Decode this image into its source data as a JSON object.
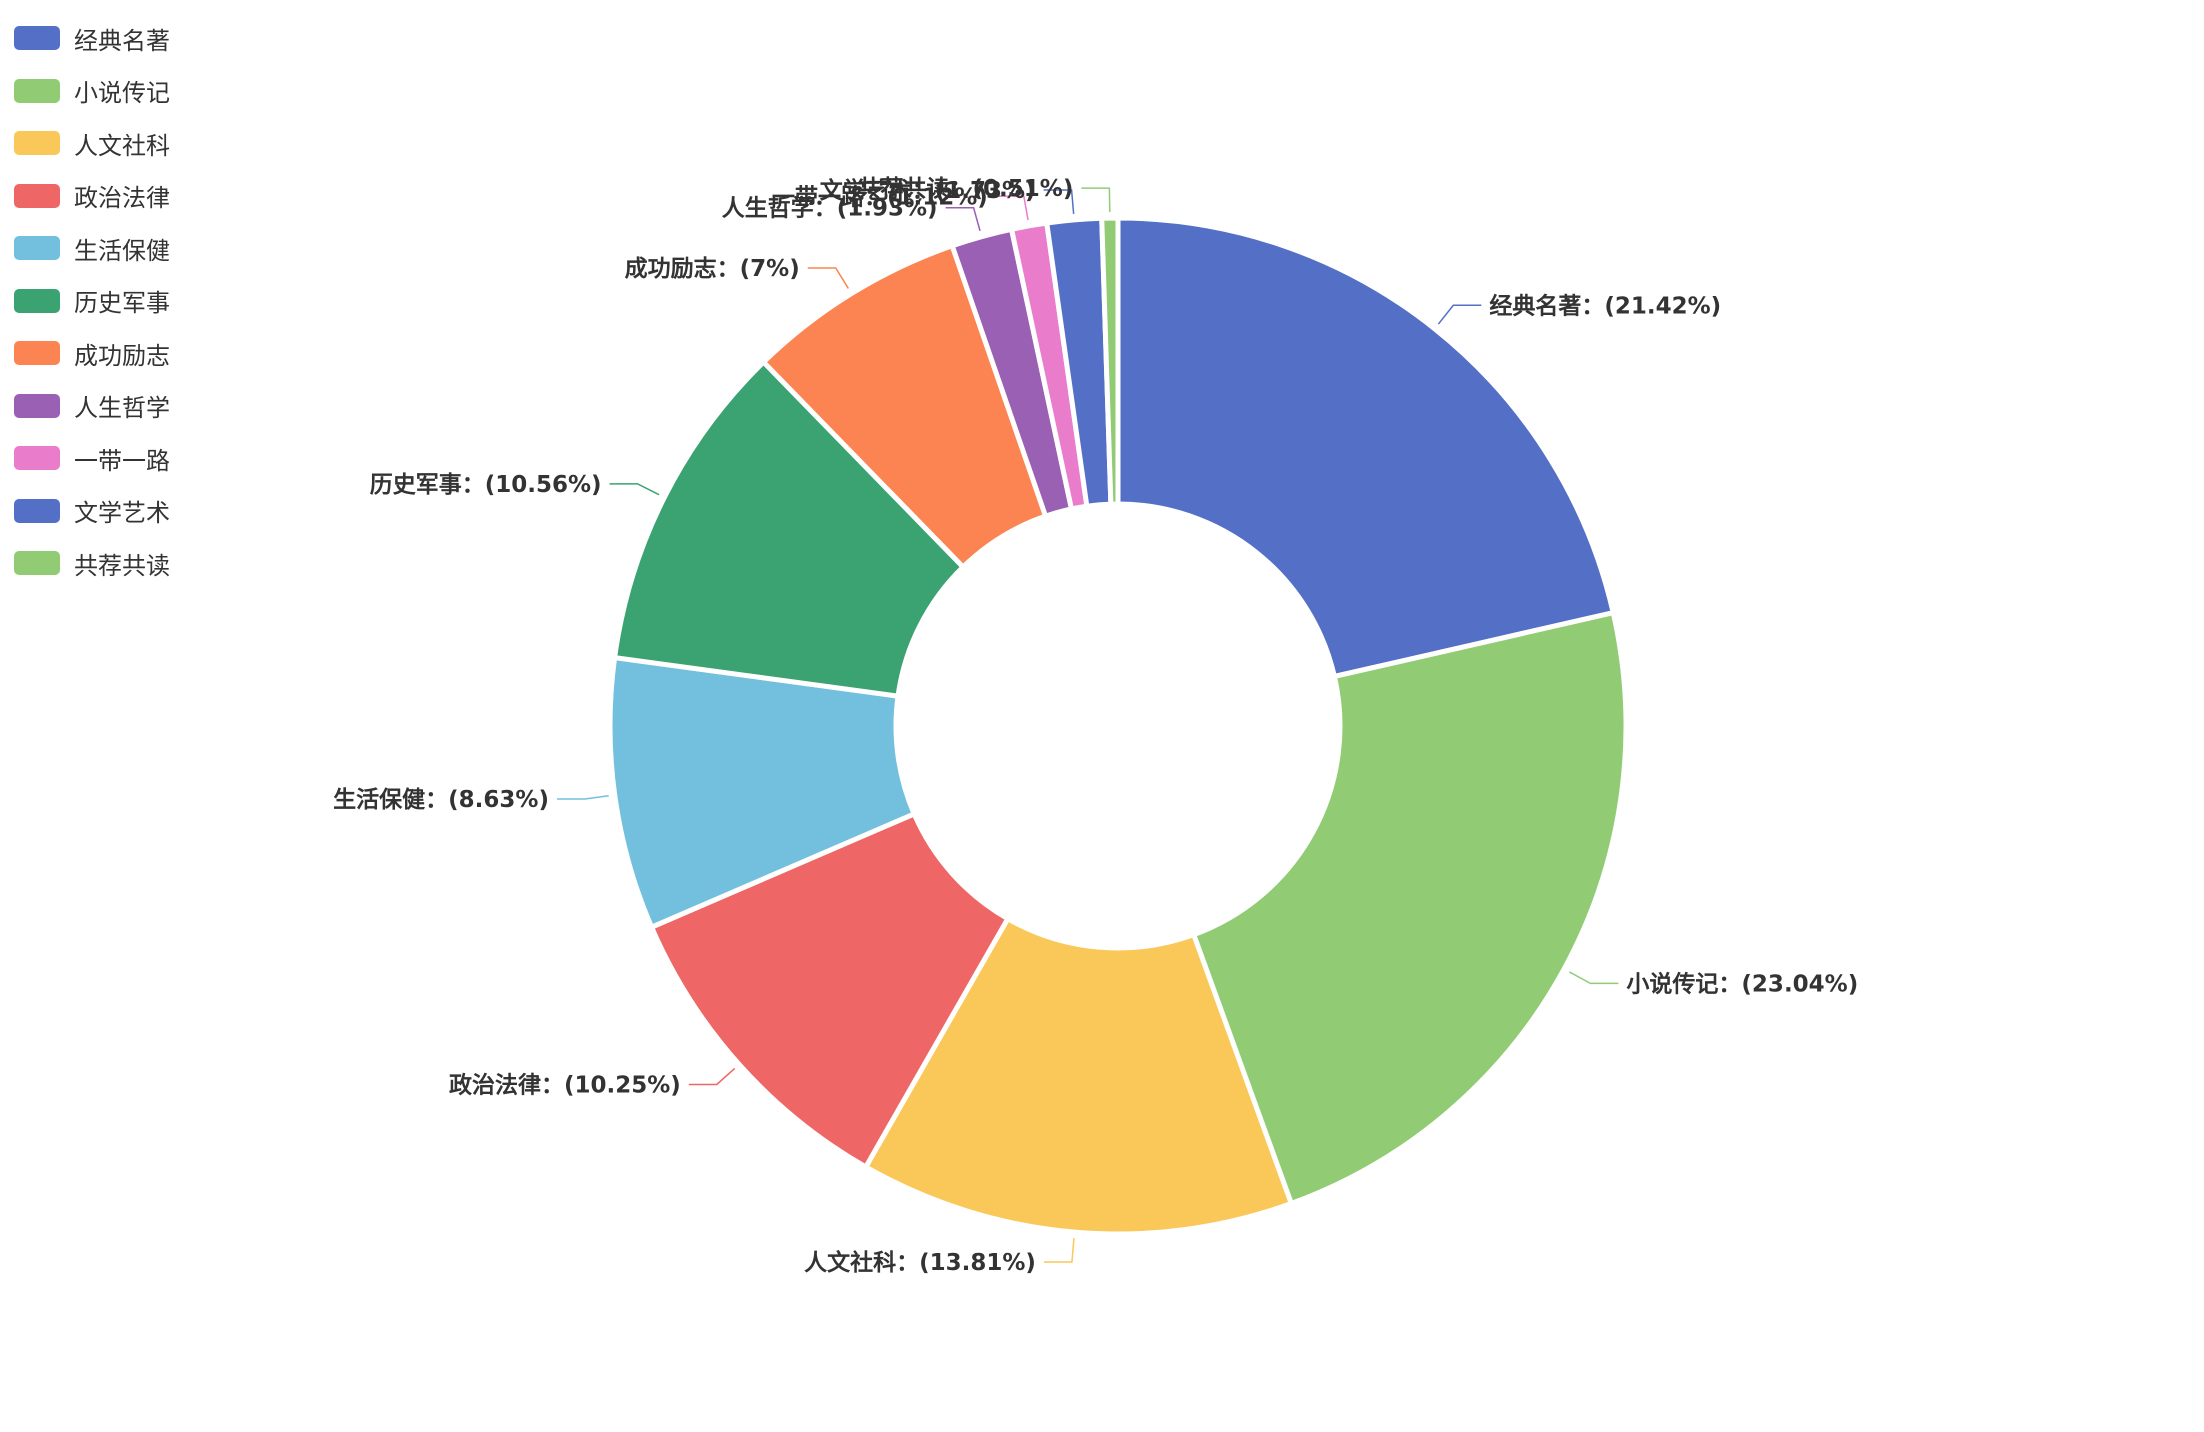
{
  "chart_data": {
    "type": "pie",
    "variant": "donut",
    "legend_position": "top-left",
    "label_format": "{name}：({percent}%)",
    "categories": [
      "经典名著",
      "小说传记",
      "人文社科",
      "政治法律",
      "生活保健",
      "历史军事",
      "成功励志",
      "人生哲学",
      "一带一路",
      "文学艺术",
      "共荐共读"
    ],
    "values": [
      21.42,
      23.04,
      13.81,
      10.25,
      8.63,
      10.56,
      7,
      1.93,
      1.12,
      1.73,
      0.51
    ],
    "colors": [
      "#5470c6",
      "#91cc75",
      "#fac858",
      "#ee6666",
      "#73c0de",
      "#3ba272",
      "#fc8452",
      "#9a60b4",
      "#ea7ccc",
      "#5470c6",
      "#91cc75"
    ],
    "labels": [
      "经典名著：(21.42%)",
      "小说传记：(23.04%)",
      "人文社科：(13.81%)",
      "政治法律：(10.25%)",
      "生活保健：(8.63%)",
      "历史军事：(10.56%)",
      "成功励志：(7%)",
      "人生哲学：(1.93%)",
      "一带一路：(1.12%)",
      "文学艺术：(1.73%)",
      "共荐共读：(0.51%)"
    ]
  }
}
